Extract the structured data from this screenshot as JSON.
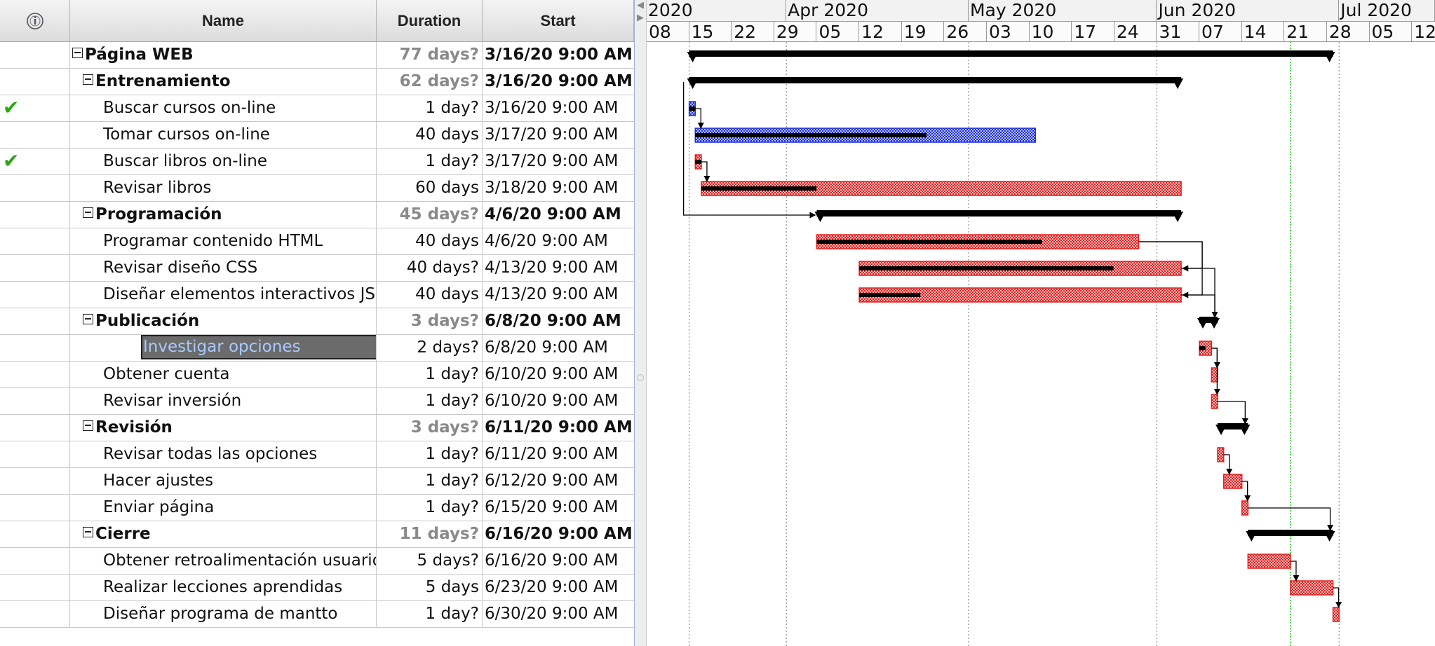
{
  "columns": {
    "name": "Name",
    "duration": "Duration",
    "start": "Start"
  },
  "header_icon": "info-icon",
  "tasks": [
    {
      "name": "Página WEB",
      "duration": "77 days?",
      "start": "3/16/20 9:00 AM",
      "level": 0,
      "summary": true,
      "estimated": true
    },
    {
      "name": "Entrenamiento",
      "duration": "62 days?",
      "start": "3/16/20 9:00 AM",
      "level": 1,
      "summary": true,
      "estimated": true
    },
    {
      "name": "Buscar cursos on-line",
      "duration": "1 day?",
      "start": "3/16/20 9:00 AM",
      "level": 2,
      "done": true
    },
    {
      "name": "Tomar cursos on-line",
      "duration": "40 days",
      "start": "3/17/20 9:00 AM",
      "level": 2
    },
    {
      "name": "Buscar libros on-line",
      "duration": "1 day?",
      "start": "3/17/20 9:00 AM",
      "level": 2,
      "done": true
    },
    {
      "name": "Revisar libros",
      "duration": "60 days",
      "start": "3/18/20 9:00 AM",
      "level": 2
    },
    {
      "name": "Programación",
      "duration": "45 days?",
      "start": "4/6/20 9:00 AM",
      "level": 1,
      "summary": true,
      "estimated": true
    },
    {
      "name": "Programar contenido HTML",
      "duration": "40 days",
      "start": "4/6/20 9:00 AM",
      "level": 2
    },
    {
      "name": "Revisar diseño CSS",
      "duration": "40 days?",
      "start": "4/13/20 9:00 AM",
      "level": 2
    },
    {
      "name": "Diseñar elementos interactivos JS",
      "duration": "40 days",
      "start": "4/13/20 9:00 AM",
      "level": 2
    },
    {
      "name": "Publicación",
      "duration": "3 days?",
      "start": "6/8/20 9:00 AM",
      "level": 1,
      "summary": true,
      "estimated": true
    },
    {
      "name": "Investigar opciones",
      "duration": "2 days?",
      "start": "6/8/20 9:00 AM",
      "level": 2,
      "selected": true
    },
    {
      "name": "Obtener cuenta",
      "duration": "1 day?",
      "start": "6/10/20 9:00 AM",
      "level": 2
    },
    {
      "name": "Revisar inversión",
      "duration": "1 day?",
      "start": "6/10/20 9:00 AM",
      "level": 2
    },
    {
      "name": "Revisión",
      "duration": "3 days?",
      "start": "6/11/20 9:00 AM",
      "level": 1,
      "summary": true,
      "estimated": true
    },
    {
      "name": "Revisar todas las opciones",
      "duration": "1 day?",
      "start": "6/11/20 9:00 AM",
      "level": 2
    },
    {
      "name": "Hacer ajustes",
      "duration": "1 day?",
      "start": "6/12/20 9:00 AM",
      "level": 2
    },
    {
      "name": "Enviar página",
      "duration": "1 day?",
      "start": "6/15/20 9:00 AM",
      "level": 2
    },
    {
      "name": "Cierre",
      "duration": "11 days?",
      "start": "6/16/20 9:00 AM",
      "level": 1,
      "summary": true,
      "estimated": true
    },
    {
      "name": "Obtener retroalimentación usuario",
      "duration": "5 days?",
      "start": "6/16/20 9:00 AM",
      "level": 2
    },
    {
      "name": "Realizar lecciones aprendidas",
      "duration": "5 days",
      "start": "6/23/20 9:00 AM",
      "level": 2
    },
    {
      "name": "Diseñar programa de mantto",
      "duration": "1 day?",
      "start": "6/30/20 9:00 AM",
      "level": 2
    }
  ],
  "timeline": {
    "months": [
      "2020",
      "Apr 2020",
      "May 2020",
      "Jun 2020",
      "Jul 2020"
    ],
    "weeks": [
      "08",
      "15",
      "22",
      "29",
      "05",
      "12",
      "19",
      "26",
      "03",
      "10",
      "17",
      "24",
      "31",
      "07",
      "14",
      "21",
      "28",
      "05",
      "12"
    ],
    "colors": {
      "critical": "#e41e1e",
      "normal": "#1d2ee0",
      "summary": "#000000",
      "today": "#22cc22"
    }
  },
  "gantt": {
    "summaries": [
      {
        "row": 0,
        "start": "2020-03-16",
        "end": "2020-06-30"
      },
      {
        "row": 1,
        "start": "2020-03-16",
        "end": "2020-06-05"
      },
      {
        "row": 6,
        "start": "2020-04-06",
        "end": "2020-06-05"
      },
      {
        "row": 10,
        "start": "2020-06-08",
        "end": "2020-06-11"
      },
      {
        "row": 14,
        "start": "2020-06-11",
        "end": "2020-06-16"
      },
      {
        "row": 18,
        "start": "2020-06-16",
        "end": "2020-06-30"
      }
    ],
    "bars": [
      {
        "row": 2,
        "start": "2020-03-16",
        "end": "2020-03-17",
        "critical": false,
        "progress": 1.0
      },
      {
        "row": 3,
        "start": "2020-03-17",
        "end": "2020-05-12",
        "critical": false,
        "progress": 0.68
      },
      {
        "row": 4,
        "start": "2020-03-17",
        "end": "2020-03-18",
        "critical": true,
        "progress": 1.0
      },
      {
        "row": 5,
        "start": "2020-03-18",
        "end": "2020-06-05",
        "critical": true,
        "progress": 0.24
      },
      {
        "row": 7,
        "start": "2020-04-06",
        "end": "2020-05-29",
        "critical": true,
        "progress": 0.7
      },
      {
        "row": 8,
        "start": "2020-04-13",
        "end": "2020-06-05",
        "critical": true,
        "progress": 0.79
      },
      {
        "row": 9,
        "start": "2020-04-13",
        "end": "2020-06-05",
        "critical": true,
        "progress": 0.19
      },
      {
        "row": 11,
        "start": "2020-06-08",
        "end": "2020-06-10",
        "critical": true,
        "progress": 0.5
      },
      {
        "row": 12,
        "start": "2020-06-10",
        "end": "2020-06-11",
        "critical": true,
        "progress": 0
      },
      {
        "row": 13,
        "start": "2020-06-10",
        "end": "2020-06-11",
        "critical": true,
        "progress": 0
      },
      {
        "row": 15,
        "start": "2020-06-11",
        "end": "2020-06-12",
        "critical": true,
        "progress": 0
      },
      {
        "row": 16,
        "start": "2020-06-12",
        "end": "2020-06-15",
        "critical": true,
        "progress": 0
      },
      {
        "row": 17,
        "start": "2020-06-15",
        "end": "2020-06-16",
        "critical": true,
        "progress": 0
      },
      {
        "row": 19,
        "start": "2020-06-16",
        "end": "2020-06-23",
        "critical": true,
        "progress": 0
      },
      {
        "row": 20,
        "start": "2020-06-23",
        "end": "2020-06-30",
        "critical": true,
        "progress": 0
      },
      {
        "row": 21,
        "start": "2020-06-30",
        "end": "2020-07-01",
        "critical": true,
        "progress": 0
      }
    ],
    "links": [
      {
        "from": 2,
        "to": 3
      },
      {
        "from": 4,
        "to": 5
      },
      {
        "from": 1,
        "to": 6
      },
      {
        "from": 7,
        "to": 8
      },
      {
        "from": 7,
        "to": 9
      },
      {
        "from": 8,
        "to": 10
      },
      {
        "from": 9,
        "to": 10
      },
      {
        "from": 11,
        "to": 12
      },
      {
        "from": 11,
        "to": 13
      },
      {
        "from": 13,
        "to": 14
      },
      {
        "from": 15,
        "to": 16
      },
      {
        "from": 16,
        "to": 17
      },
      {
        "from": 17,
        "to": 18
      },
      {
        "from": 19,
        "to": 20
      },
      {
        "from": 20,
        "to": 21
      }
    ]
  }
}
